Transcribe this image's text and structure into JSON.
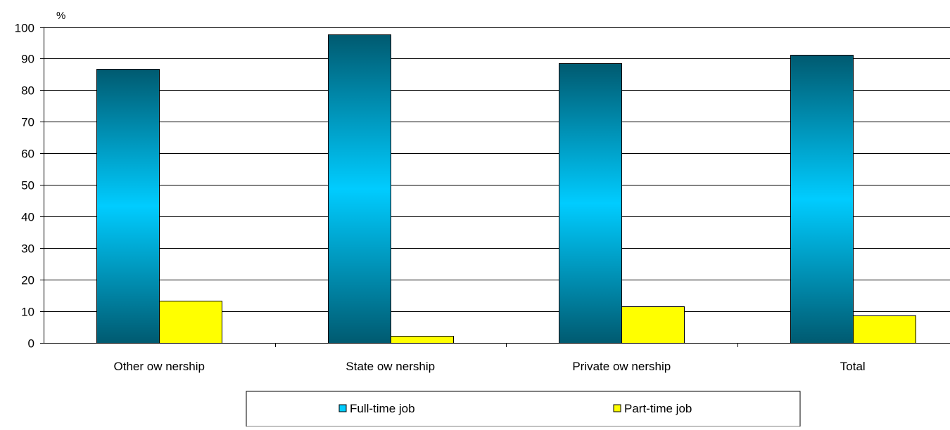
{
  "chart_data": {
    "type": "bar",
    "ylabel": "%",
    "ylim": [
      0,
      100
    ],
    "yticks": [
      0,
      10,
      20,
      30,
      40,
      50,
      60,
      70,
      80,
      90,
      100
    ],
    "grid": true,
    "legend_position": "bottom",
    "categories": [
      "Other ow nership",
      "State ow nership",
      "Private ow nership",
      "Total"
    ],
    "series": [
      {
        "name": "Full-time job",
        "values": [
          86.7,
          97.7,
          88.5,
          91.3
        ],
        "color": "#00CCFF",
        "edge_color": "#005A70"
      },
      {
        "name": "Part-time job",
        "values": [
          13.3,
          2.3,
          11.5,
          8.7
        ],
        "color": "#FFFF00"
      }
    ]
  }
}
